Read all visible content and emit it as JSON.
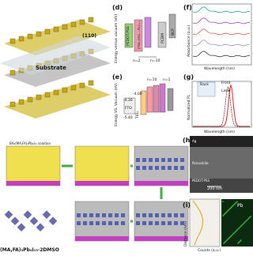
{
  "panel_a": {
    "plane": "(110)",
    "substrate": "Substrate"
  },
  "panel_d": {
    "label": "(d)",
    "y_axis": "Energy versus vacuum (eV)",
    "layers": [
      "PEDOT:PSS",
      "(PEA)₂(MA)ₙ₋₁PbₙI₃ₙ₊₁",
      "PCBM",
      "BCP"
    ],
    "n_low": "n=2",
    "n_high": "n=10"
  },
  "panel_e": {
    "label": "(e)",
    "y_axis": "Energy VS. Vacuum (eV)",
    "n_low": "n=1",
    "n_high": "n=10",
    "levels": [
      "-4.30",
      "-4.00",
      "-5.40"
    ],
    "layers": [
      "FTO",
      "TiO₂"
    ]
  },
  "panel_f": {
    "label": "(f)",
    "y_axis": "Absorbance (a.u.)",
    "x_axis": "Wavelength (nm)"
  },
  "panel_g": {
    "label": "(g)",
    "y_axis": "Normalized PL",
    "x_axis": "Wavelength (nm)",
    "inset": [
      "Back",
      "Front",
      "Laser"
    ]
  },
  "panel_h": {
    "label": "(h)",
    "layers": [
      "Ag",
      "Perovskite",
      "PEDOT:PSS"
    ],
    "scale": "200 nm"
  },
  "panel_i": {
    "label": "(i)",
    "y_axis": "Distance (nm)",
    "x_axis": "Counts (a.u.)",
    "element": "Pb"
  },
  "flow": {
    "solution": "BA₂(MA,FA)₃Pb₄I₁₃ solution",
    "product": "(MA,FA)₃Pb₄I₁₃·2DMSO"
  }
}
